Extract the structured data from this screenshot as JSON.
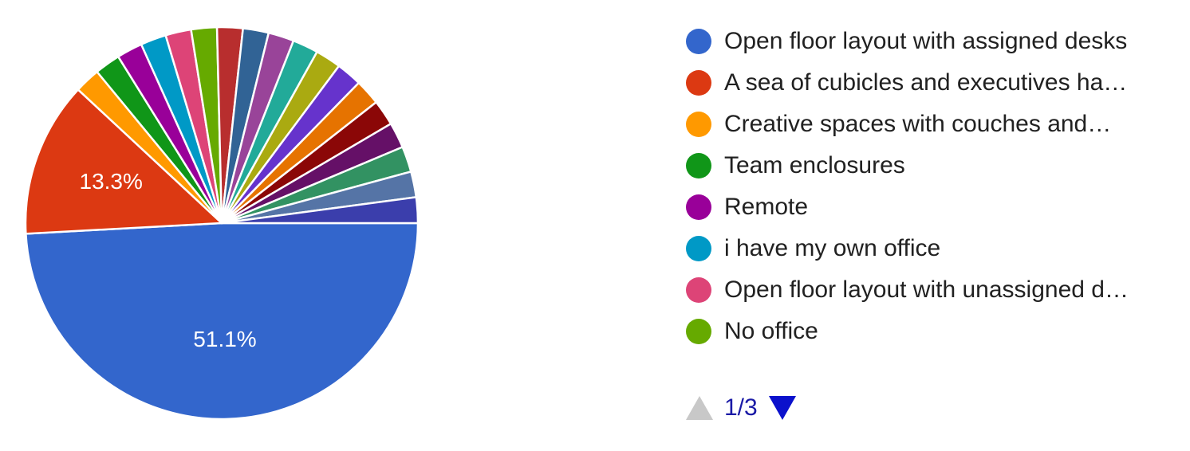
{
  "chart_data": {
    "type": "pie",
    "slices": [
      {
        "name": "Open floor layout with assigned desks",
        "value": 51.1,
        "color": "#3366cc",
        "label": "51.1%"
      },
      {
        "name": "A sea of cubicles and executives ha…",
        "value": 13.3,
        "color": "#dc3912",
        "label": "13.3%"
      },
      {
        "name": "Creative spaces with couches and…",
        "value": 2.2,
        "color": "#ff9900"
      },
      {
        "name": "Team enclosures",
        "value": 2.2,
        "color": "#109618"
      },
      {
        "name": "Remote",
        "value": 2.2,
        "color": "#990099"
      },
      {
        "name": "i have my own office",
        "value": 2.2,
        "color": "#0099c6"
      },
      {
        "name": "Open floor layout with unassigned d…",
        "value": 2.2,
        "color": "#dd4477"
      },
      {
        "name": "No office",
        "value": 2.2,
        "color": "#66aa00"
      },
      {
        "value": 2.2,
        "color": "#b82e2e"
      },
      {
        "value": 2.2,
        "color": "#316395"
      },
      {
        "value": 2.2,
        "color": "#994499"
      },
      {
        "value": 2.2,
        "color": "#22aa99"
      },
      {
        "value": 2.2,
        "color": "#aaaa11"
      },
      {
        "value": 2.2,
        "color": "#6633cc"
      },
      {
        "value": 2.2,
        "color": "#e67300"
      },
      {
        "value": 2.2,
        "color": "#8b0707"
      },
      {
        "value": 2.2,
        "color": "#651067"
      },
      {
        "value": 2.2,
        "color": "#329262"
      },
      {
        "value": 2.2,
        "color": "#5574a6"
      },
      {
        "value": 2.2,
        "color": "#3b3eac"
      }
    ],
    "legend_placement": "right"
  },
  "legend": {
    "items": [
      {
        "label": "Open floor layout with assigned desks",
        "color": "#3366cc"
      },
      {
        "label": "A sea of cubicles and executives ha…",
        "color": "#dc3912"
      },
      {
        "label": "Creative spaces with couches and…",
        "color": "#ff9900"
      },
      {
        "label": "Team enclosures",
        "color": "#109618"
      },
      {
        "label": "Remote",
        "color": "#990099"
      },
      {
        "label": "i have my own office",
        "color": "#0099c6"
      },
      {
        "label": "Open floor layout with unassigned d…",
        "color": "#dd4477"
      },
      {
        "label": "No office",
        "color": "#66aa00"
      }
    ]
  },
  "pager": {
    "page_text": "1/3"
  }
}
